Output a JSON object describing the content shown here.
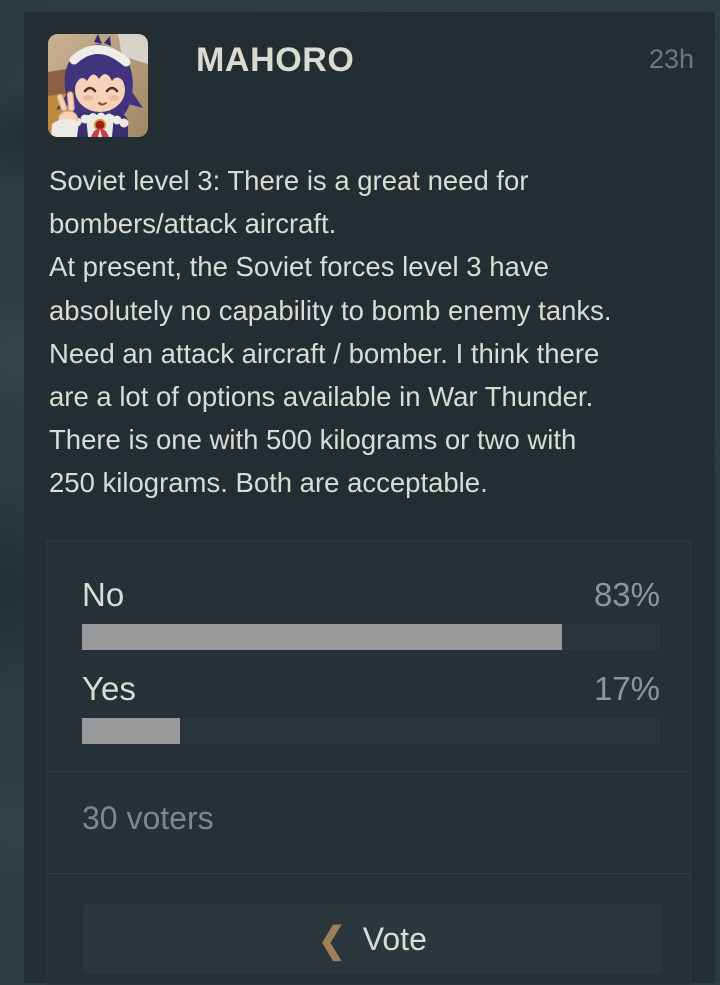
{
  "header": {
    "username": "MAHORO",
    "timestamp": "23h",
    "avatar": "anime-maid-girl-avatar"
  },
  "post": {
    "text": "Soviet level 3: There is a great need for\nbombers/attack aircraft.\nAt present, the Soviet forces level 3 have\nabsolutely no capability to bomb enemy tanks.\nNeed an attack aircraft / bomber. I think there\nare a lot of options available in War Thunder.\nThere is one with 500 kilograms or two with\n250 kilograms. Both are acceptable."
  },
  "poll": {
    "options": [
      {
        "label": "No",
        "percent_label": "83%",
        "percent": 83
      },
      {
        "label": "Yes",
        "percent_label": "17%",
        "percent": 17
      }
    ],
    "voters_label": "30 voters",
    "vote_button_label": "Vote",
    "chevron_icon": "❮"
  },
  "colors": {
    "page_background": "#2e3d42",
    "card_background": "#232e32",
    "panel_background": "#263137",
    "bar_track": "#2b363c",
    "bar_fill": "#98999b",
    "primary_text": "#dadcd4",
    "muted_text": "#8f9598",
    "timestamp_text": "#6e797e",
    "chevron_accent": "#9d8058",
    "vote_button_background": "#2b363d"
  }
}
